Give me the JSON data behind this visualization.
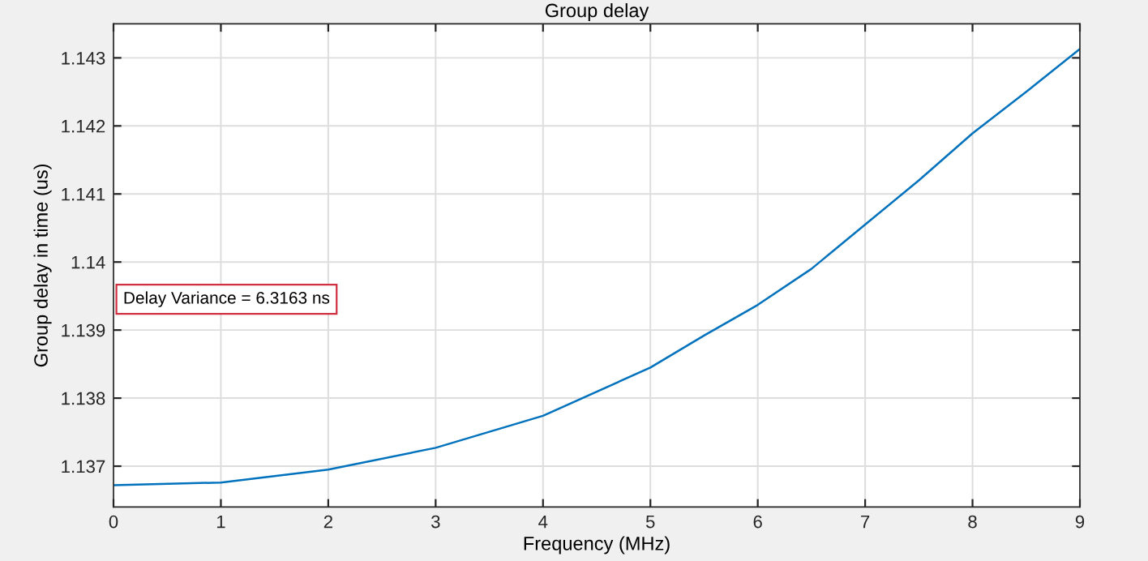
{
  "chart_data": {
    "type": "line",
    "title": "Group delay",
    "xlabel": "Frequency (MHz)",
    "ylabel": "Group delay in time (us)",
    "x": [
      0,
      1,
      2,
      3,
      4,
      5,
      5.5,
      6,
      6.5,
      7,
      7.5,
      8,
      8.5,
      9
    ],
    "series": [
      {
        "color": "#0072bd",
        "values": [
          1.13672,
          1.13676,
          1.13695,
          1.13727,
          1.13774,
          1.13845,
          1.13892,
          1.13937,
          1.1399,
          1.14055,
          1.1412,
          1.14189,
          1.1425,
          1.14313
        ]
      }
    ],
    "xlim": [
      0,
      9
    ],
    "xticks": [
      0,
      1,
      2,
      3,
      4,
      5,
      6,
      7,
      8,
      9
    ],
    "ylim": [
      1.1364,
      1.1435
    ],
    "yticks": [
      1.137,
      1.138,
      1.139,
      1.14,
      1.141,
      1.142,
      1.143
    ],
    "grid": true,
    "annotations": [
      "Delay Variance = 6.3163 ns"
    ]
  }
}
